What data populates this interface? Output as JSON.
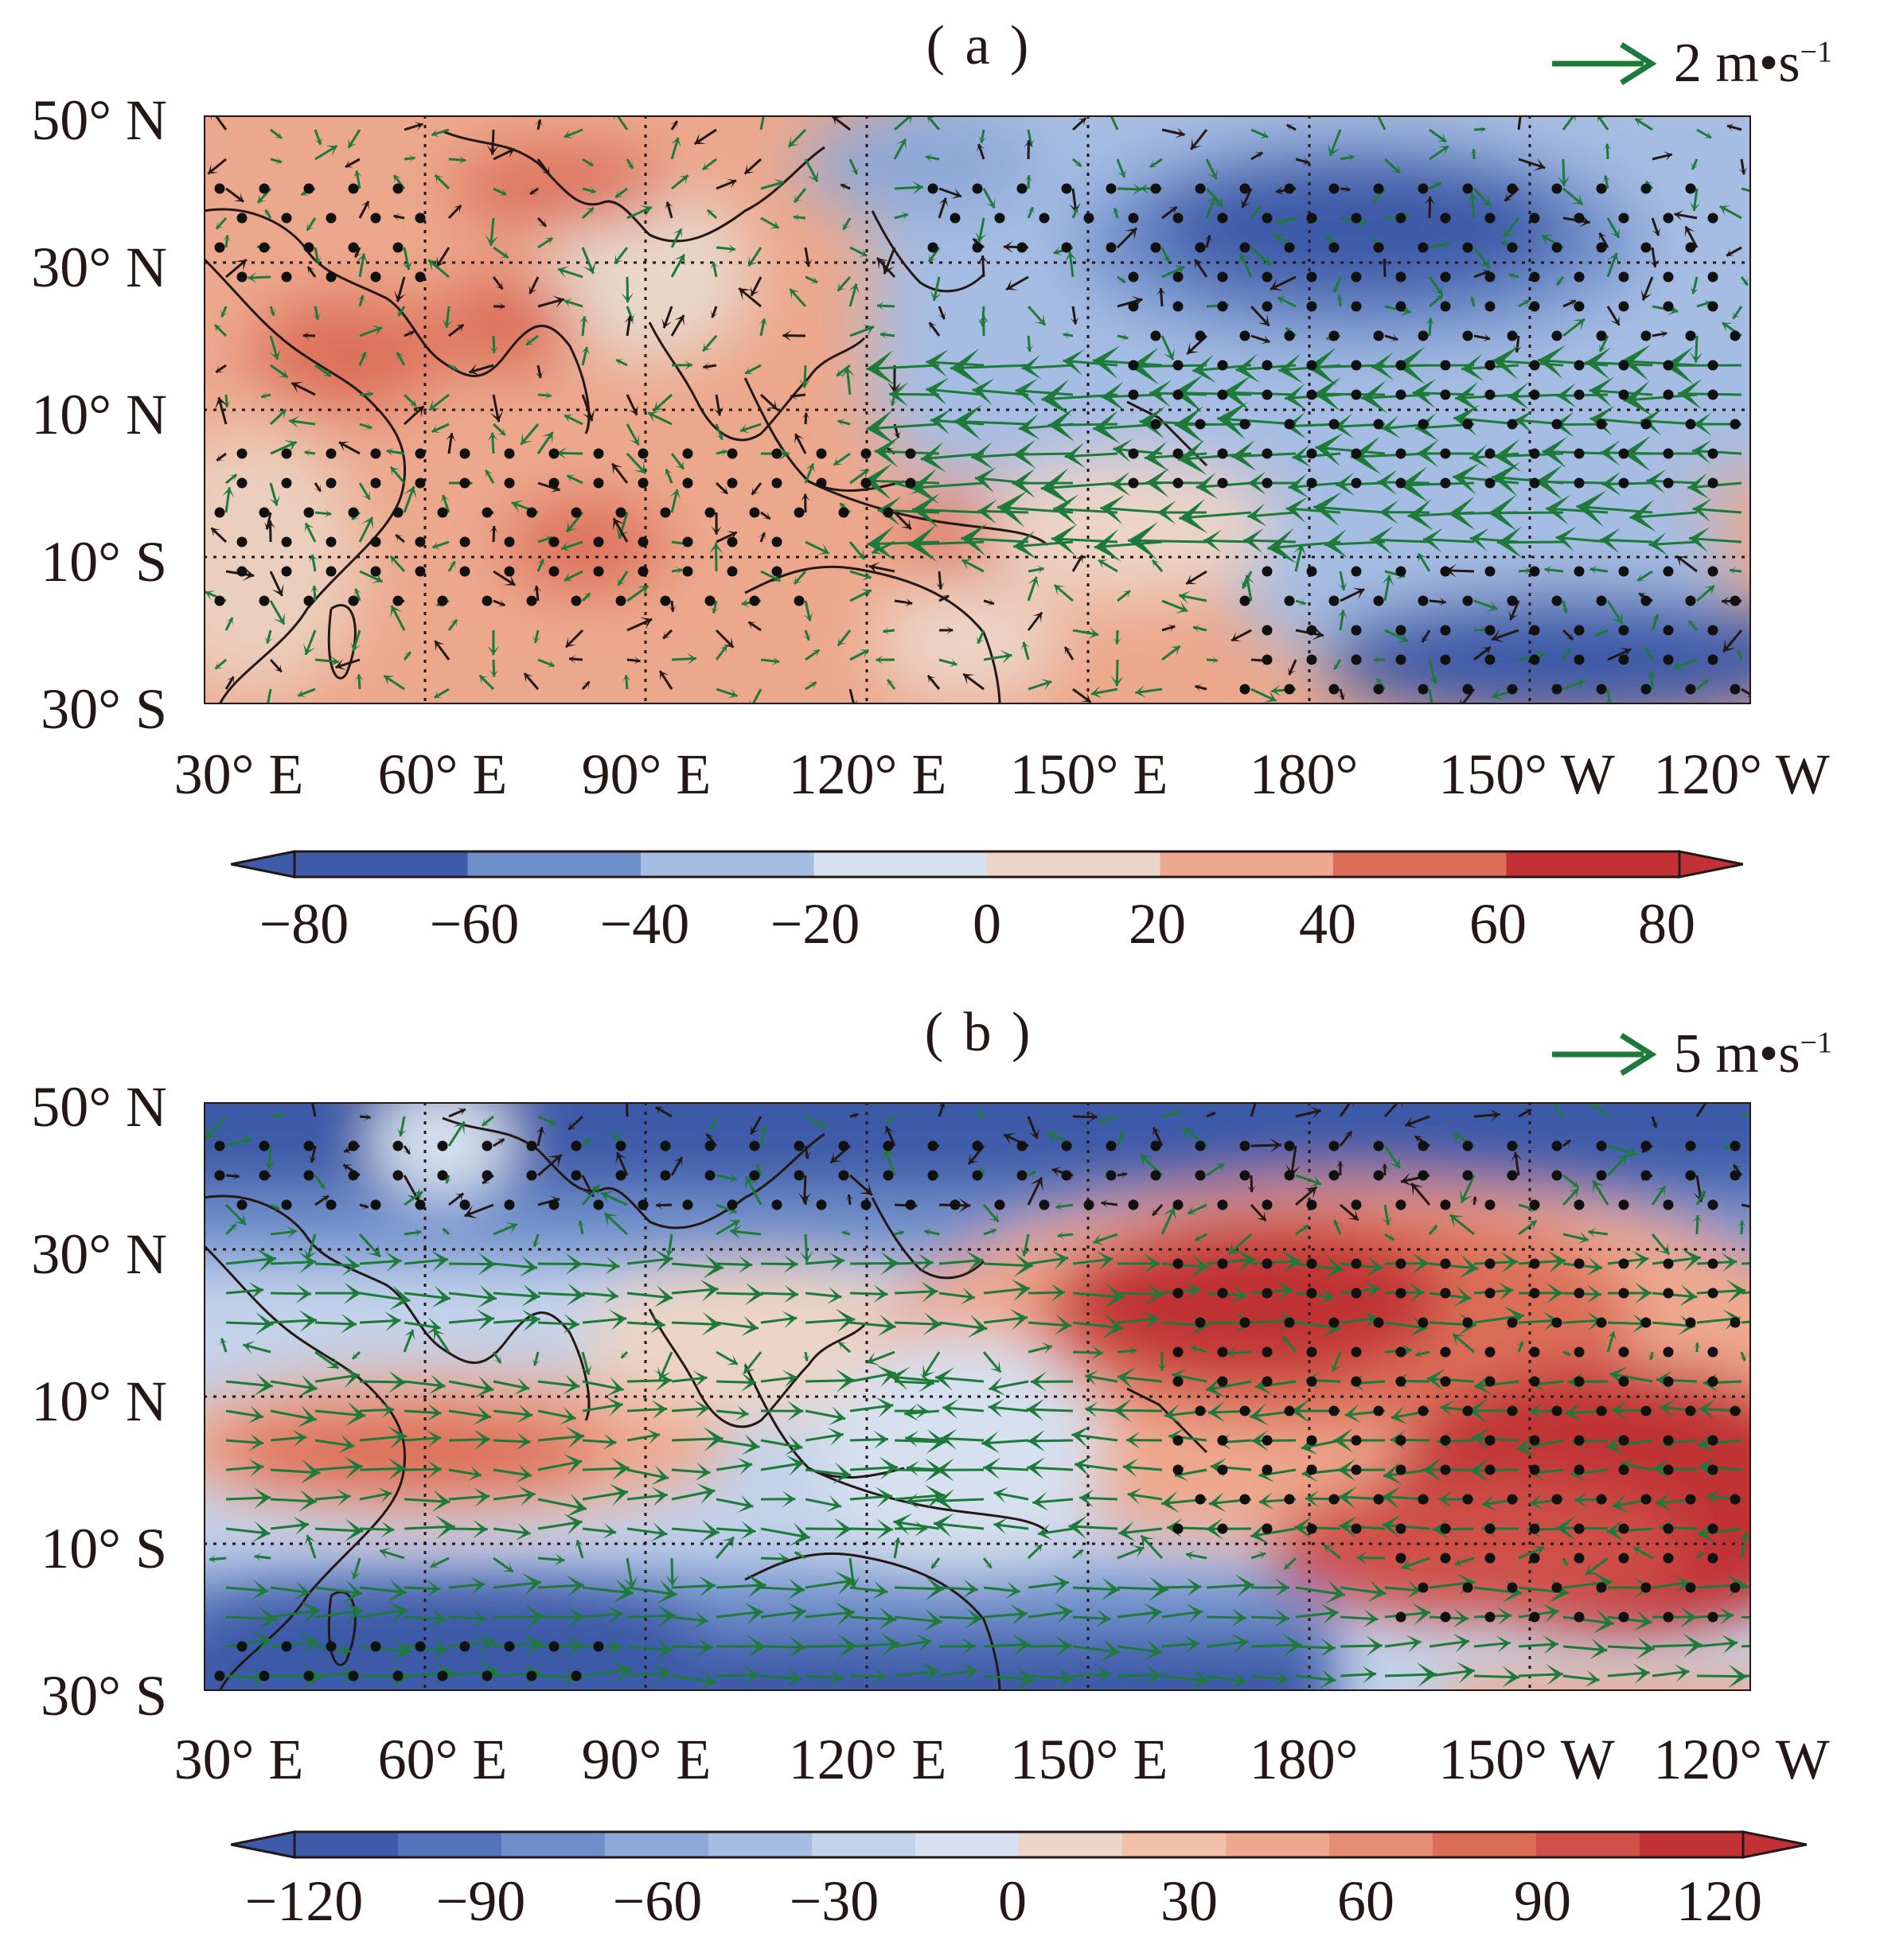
{
  "panels": [
    {
      "id": "a",
      "title": "( a )",
      "ref_vector": {
        "value": "2 m•s",
        "exp": "−1",
        "color": "#1e7a3a"
      },
      "lat_labels": [
        "50° N",
        "30° N",
        "10° N",
        "10° S",
        "30° S"
      ],
      "lon_labels": [
        "30° E",
        "60° E",
        "90° E",
        "120° E",
        "150° E",
        "180°",
        "150° W",
        "120° W"
      ],
      "colorbar": {
        "ticks": [
          "−80",
          "−60",
          "−40",
          "−20",
          "0",
          "20",
          "40",
          "60",
          "80"
        ],
        "colors": [
          "#3e5aa8",
          "#6f8fcb",
          "#a6bde3",
          "#d6e0ee",
          "#ecd4c6",
          "#eea88e",
          "#dc6e58",
          "#c13136"
        ]
      }
    },
    {
      "id": "b",
      "title": "( b )",
      "ref_vector": {
        "value": "5 m•s",
        "exp": "−1",
        "color": "#1e7a3a"
      },
      "lat_labels": [
        "50° N",
        "30° N",
        "10° N",
        "10° S",
        "30° S"
      ],
      "lon_labels": [
        "30° E",
        "60° E",
        "90° E",
        "120° E",
        "150° E",
        "180°",
        "150° W",
        "120° W"
      ],
      "colorbar": {
        "ticks": [
          "−120",
          "−90",
          "−60",
          "−30",
          "0",
          "30",
          "60",
          "90",
          "120"
        ],
        "colors": [
          "#3e5aa8",
          "#5374bc",
          "#6f8fcb",
          "#8ea8d7",
          "#a6bde3",
          "#c3d2ea",
          "#d6e0ee",
          "#ecd4c6",
          "#f2bfa8",
          "#eea88e",
          "#e58e74",
          "#dc6e58",
          "#cf5048",
          "#c13136"
        ]
      }
    }
  ]
}
